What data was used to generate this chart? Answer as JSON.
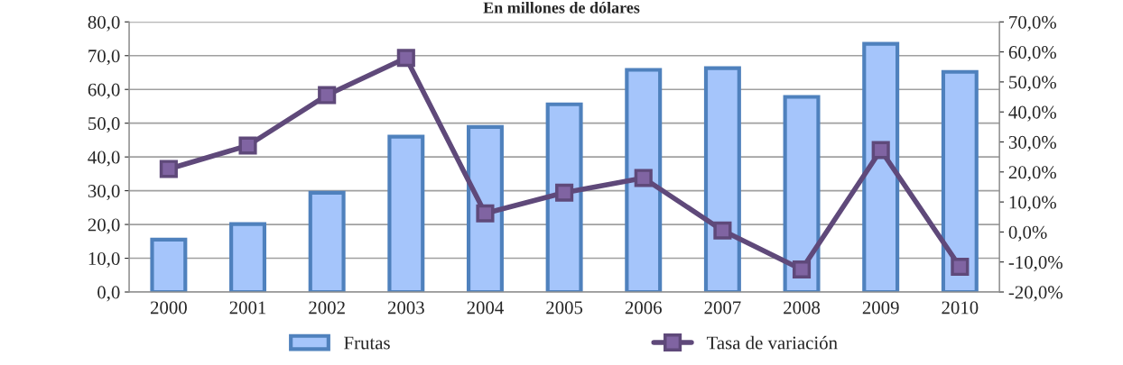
{
  "chart_data": {
    "type": "bar",
    "title": "En millones de dólares",
    "categories": [
      "2000",
      "2001",
      "2002",
      "2003",
      "2004",
      "2005",
      "2006",
      "2007",
      "2008",
      "2009",
      "2010"
    ],
    "series": [
      {
        "name": "Frutas",
        "color": "#a5c5fb",
        "values": [
          15.5,
          20.1,
          29.4,
          46.0,
          48.9,
          55.6,
          65.8,
          66.3,
          57.8,
          73.5,
          65.2
        ]
      },
      {
        "name": "Tasa de variación",
        "type": "line",
        "axis": "y2",
        "color": "#5f497a",
        "marker": "square",
        "values": [
          21.0,
          28.8,
          45.6,
          58.0,
          6.2,
          13.1,
          18.0,
          0.5,
          -12.5,
          27.3,
          -11.6
        ]
      }
    ],
    "ylim": [
      0,
      80
    ],
    "yticks": [
      {
        "value": 0,
        "label": "0,0"
      },
      {
        "value": 10,
        "label": "10,0"
      },
      {
        "value": 20,
        "label": "20,0"
      },
      {
        "value": 30,
        "label": "30,0"
      },
      {
        "value": 40,
        "label": "40,0"
      },
      {
        "value": 50,
        "label": "50,0"
      },
      {
        "value": 60,
        "label": "60,0"
      },
      {
        "value": 70,
        "label": "70,0"
      },
      {
        "value": 80,
        "label": "80,0"
      }
    ],
    "y2lim": [
      -20,
      70
    ],
    "y2ticks": [
      {
        "value": -20,
        "label": "-20,0%"
      },
      {
        "value": -10,
        "label": "-10,0%"
      },
      {
        "value": 0,
        "label": "0,0%"
      },
      {
        "value": 10,
        "label": "10,0%"
      },
      {
        "value": 20,
        "label": "20,0%"
      },
      {
        "value": 30,
        "label": "30,0%"
      },
      {
        "value": 40,
        "label": "40,0%"
      },
      {
        "value": 50,
        "label": "50,0%"
      },
      {
        "value": 60,
        "label": "60,0%"
      },
      {
        "value": 70,
        "label": "70,0%"
      }
    ],
    "grid": "y",
    "legend": "bottom"
  }
}
